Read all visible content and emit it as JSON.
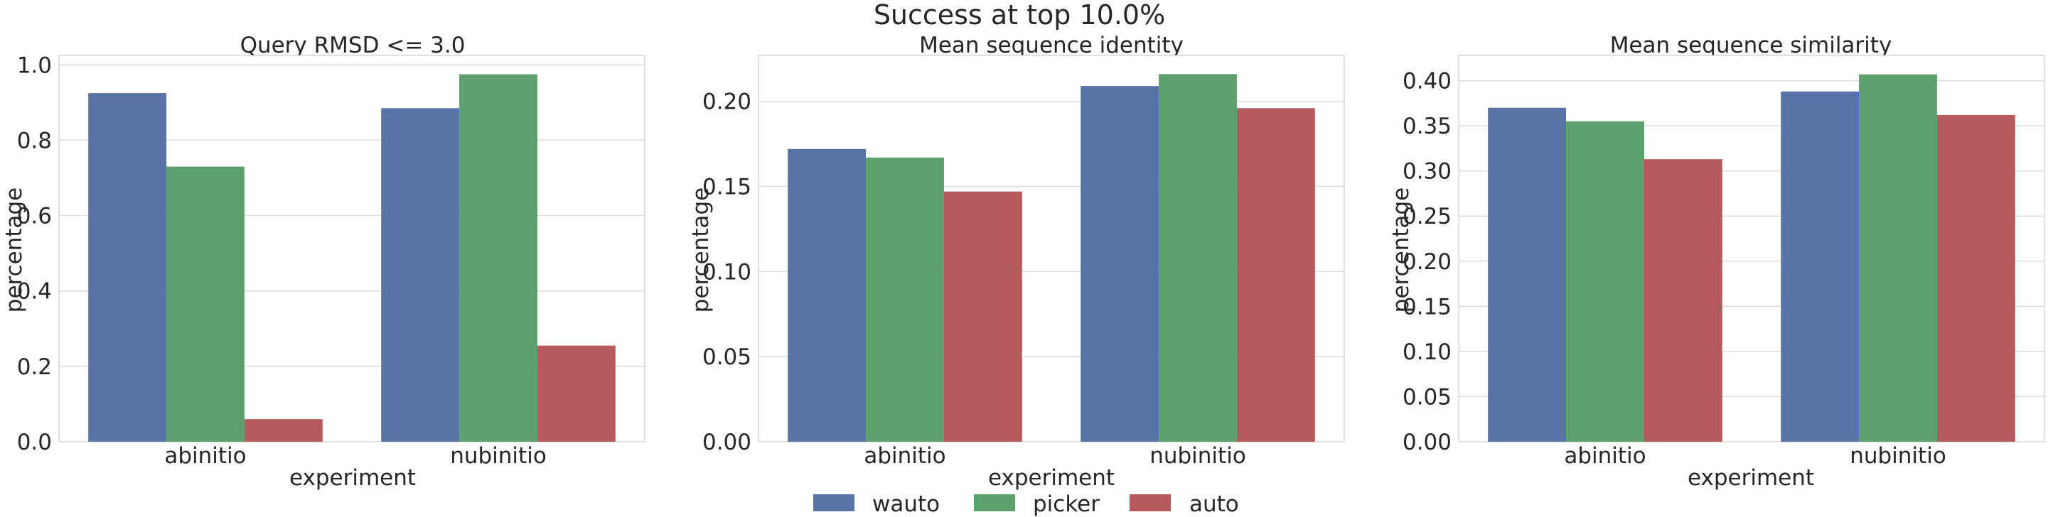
{
  "suptitle": "Success at top 10.0%",
  "colors": {
    "wauto": "#5874a6",
    "picker": "#5d9f6d",
    "auto": "#b55b5e",
    "grid": "#dcdcdc",
    "frame": "#cccccc"
  },
  "legend": {
    "placement": "bottom-center",
    "entries": [
      "wauto",
      "picker",
      "auto"
    ]
  },
  "chart_data": [
    {
      "type": "bar",
      "title": "Query RMSD <= 3.0",
      "xlabel": "experiment",
      "ylabel": "percentage",
      "categories": [
        "abinitio",
        "nubinitio"
      ],
      "series": [
        {
          "name": "wauto",
          "values": [
            0.925,
            0.885
          ]
        },
        {
          "name": "picker",
          "values": [
            0.73,
            0.975
          ]
        },
        {
          "name": "auto",
          "values": [
            0.06,
            0.255
          ]
        }
      ],
      "ylim": [
        0,
        1.025
      ],
      "yticks": [
        "0.0",
        "0.2",
        "0.4",
        "0.6",
        "0.8",
        "1.0"
      ],
      "ytick_values": [
        0,
        0.2,
        0.4,
        0.6,
        0.8,
        1.0
      ],
      "grid": true
    },
    {
      "type": "bar",
      "title": "Mean sequence identity",
      "xlabel": "experiment",
      "ylabel": "percentage",
      "categories": [
        "abinitio",
        "nubinitio"
      ],
      "series": [
        {
          "name": "wauto",
          "values": [
            0.172,
            0.209
          ]
        },
        {
          "name": "picker",
          "values": [
            0.167,
            0.216
          ]
        },
        {
          "name": "auto",
          "values": [
            0.147,
            0.196
          ]
        }
      ],
      "ylim": [
        0,
        0.227
      ],
      "yticks": [
        "0.00",
        "0.05",
        "0.10",
        "0.15",
        "0.20"
      ],
      "ytick_values": [
        0,
        0.05,
        0.1,
        0.15,
        0.2
      ],
      "grid": true
    },
    {
      "type": "bar",
      "title": "Mean sequence similarity",
      "xlabel": "experiment",
      "ylabel": "percentage",
      "categories": [
        "abinitio",
        "nubinitio"
      ],
      "series": [
        {
          "name": "wauto",
          "values": [
            0.37,
            0.388
          ]
        },
        {
          "name": "picker",
          "values": [
            0.355,
            0.407
          ]
        },
        {
          "name": "auto",
          "values": [
            0.313,
            0.362
          ]
        }
      ],
      "ylim": [
        0,
        0.428
      ],
      "yticks": [
        "0.00",
        "0.05",
        "0.10",
        "0.15",
        "0.20",
        "0.25",
        "0.30",
        "0.35",
        "0.40"
      ],
      "ytick_values": [
        0,
        0.05,
        0.1,
        0.15,
        0.2,
        0.25,
        0.3,
        0.35,
        0.4
      ],
      "grid": true
    }
  ]
}
